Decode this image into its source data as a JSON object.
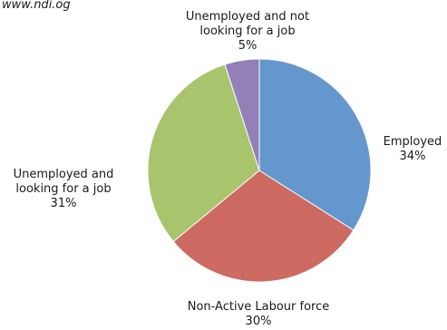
{
  "source": "www.ndi.og",
  "chart_data": {
    "type": "pie",
    "title": "",
    "slices": [
      {
        "name": "Employed",
        "value": 34,
        "value_label": "34%",
        "label_lines": [
          "Employed"
        ],
        "color": "#6497cd"
      },
      {
        "name": "Non-Active Labour force",
        "value": 30,
        "value_label": "30%",
        "label_lines": [
          "Non-Active Labour force"
        ],
        "color": "#cd6a62"
      },
      {
        "name": "Unemployed and looking for a job",
        "value": 31,
        "value_label": "31%",
        "label_lines": [
          "Unemployed and",
          "looking for a job"
        ],
        "color": "#a8c46c"
      },
      {
        "name": "Unemployed and not looking for a job",
        "value": 5,
        "value_label": "5%",
        "label_lines": [
          "Unemployed and not",
          "looking for a job"
        ],
        "color": "#9380b8"
      }
    ],
    "start_angle": "12 o'clock",
    "direction": "clockwise",
    "legend": "none"
  }
}
